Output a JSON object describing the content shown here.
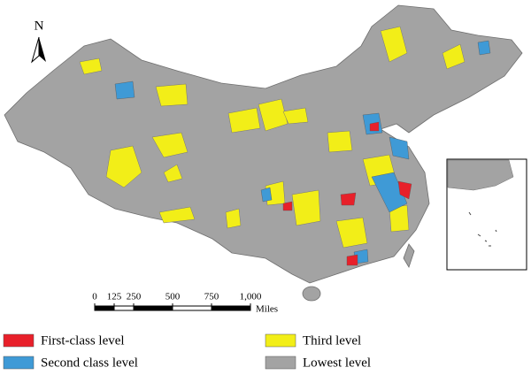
{
  "north_arrow": {
    "label": "N"
  },
  "scale_bar": {
    "ticks": [
      0,
      125,
      250,
      500,
      750,
      {
        "value": 1000,
        "label": "1,000"
      }
    ],
    "unit": "Miles"
  },
  "legend": [
    {
      "label": "First-class level",
      "color": "#e8202a"
    },
    {
      "label": "Second class level",
      "color": "#3f9ad6"
    },
    {
      "label": "Third level",
      "color": "#f2ee18"
    },
    {
      "label": "Lowest level",
      "color": "#a3a3a3"
    }
  ]
}
